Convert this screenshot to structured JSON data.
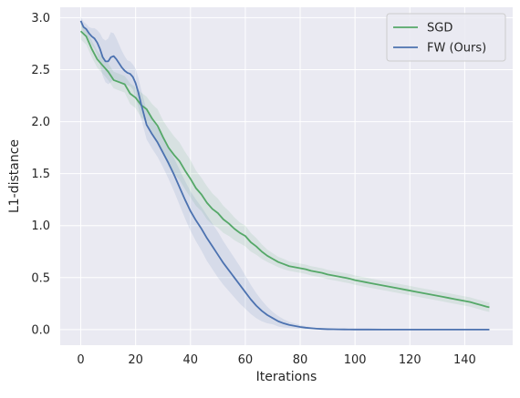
{
  "chart_data": {
    "type": "line",
    "xlabel": "Iterations",
    "ylabel": "L1-distance",
    "xlim": [
      -7.5,
      157.5
    ],
    "ylim": [
      -0.15,
      3.1
    ],
    "xticks": [
      0,
      20,
      40,
      60,
      80,
      100,
      120,
      140
    ],
    "yticks": [
      0.0,
      0.5,
      1.0,
      1.5,
      2.0,
      2.5,
      3.0
    ],
    "grid": true,
    "legend_position": "top-right",
    "background_color": "#eaeaf2",
    "series": [
      {
        "name": "SGD",
        "color": "#55a868",
        "x": [
          0,
          2,
          4,
          6,
          8,
          10,
          12,
          14,
          16,
          18,
          20,
          22,
          24,
          26,
          28,
          30,
          32,
          34,
          36,
          38,
          40,
          42,
          44,
          46,
          48,
          50,
          52,
          54,
          56,
          58,
          60,
          62,
          64,
          66,
          68,
          70,
          72,
          74,
          76,
          78,
          80,
          82,
          84,
          86,
          88,
          90,
          92,
          94,
          96,
          98,
          100,
          102,
          104,
          106,
          108,
          110,
          112,
          114,
          116,
          118,
          120,
          122,
          124,
          126,
          128,
          130,
          132,
          134,
          136,
          138,
          140,
          142,
          144,
          146,
          148,
          149
        ],
        "y": [
          2.87,
          2.82,
          2.7,
          2.6,
          2.54,
          2.48,
          2.4,
          2.38,
          2.36,
          2.27,
          2.23,
          2.16,
          2.12,
          2.03,
          1.96,
          1.85,
          1.75,
          1.68,
          1.62,
          1.53,
          1.45,
          1.36,
          1.3,
          1.22,
          1.16,
          1.12,
          1.06,
          1.02,
          0.97,
          0.93,
          0.9,
          0.84,
          0.8,
          0.75,
          0.71,
          0.68,
          0.65,
          0.63,
          0.61,
          0.6,
          0.59,
          0.58,
          0.565,
          0.555,
          0.545,
          0.53,
          0.52,
          0.51,
          0.5,
          0.49,
          0.475,
          0.465,
          0.455,
          0.445,
          0.435,
          0.425,
          0.415,
          0.405,
          0.395,
          0.385,
          0.375,
          0.365,
          0.355,
          0.345,
          0.335,
          0.325,
          0.315,
          0.305,
          0.295,
          0.285,
          0.275,
          0.265,
          0.25,
          0.235,
          0.22,
          0.215
        ],
        "band": [
          0.08,
          0.08,
          0.08,
          0.08,
          0.08,
          0.08,
          0.08,
          0.08,
          0.08,
          0.1,
          0.1,
          0.12,
          0.12,
          0.14,
          0.16,
          0.16,
          0.18,
          0.18,
          0.18,
          0.18,
          0.18,
          0.17,
          0.16,
          0.16,
          0.15,
          0.14,
          0.13,
          0.12,
          0.11,
          0.1,
          0.1,
          0.09,
          0.08,
          0.07,
          0.06,
          0.055,
          0.05,
          0.05,
          0.045,
          0.045,
          0.045,
          0.045,
          0.045,
          0.045,
          0.045,
          0.045,
          0.045,
          0.045,
          0.045,
          0.045,
          0.045,
          0.045,
          0.045,
          0.045,
          0.045,
          0.045,
          0.045,
          0.045,
          0.045,
          0.045,
          0.045,
          0.045,
          0.045,
          0.045,
          0.045,
          0.045,
          0.045,
          0.045,
          0.045,
          0.045,
          0.045,
          0.045,
          0.045,
          0.045,
          0.045,
          0.045
        ]
      },
      {
        "name": "FW (Ours)",
        "color": "#4c72b0",
        "x": [
          0,
          1,
          2,
          3,
          4,
          5,
          6,
          7,
          8,
          9,
          10,
          11,
          12,
          13,
          14,
          15,
          16,
          17,
          18,
          19,
          20,
          21,
          22,
          23,
          24,
          26,
          28,
          30,
          32,
          34,
          36,
          38,
          40,
          42,
          44,
          46,
          48,
          50,
          52,
          54,
          56,
          58,
          60,
          62,
          64,
          66,
          68,
          70,
          72,
          74,
          76,
          78,
          80,
          82,
          84,
          86,
          88,
          90,
          92,
          94,
          96,
          98,
          100,
          105,
          110,
          115,
          120,
          125,
          130,
          135,
          140,
          145,
          149
        ],
        "y": [
          2.97,
          2.91,
          2.89,
          2.85,
          2.82,
          2.8,
          2.76,
          2.7,
          2.62,
          2.58,
          2.58,
          2.62,
          2.63,
          2.6,
          2.56,
          2.52,
          2.49,
          2.47,
          2.46,
          2.43,
          2.37,
          2.28,
          2.17,
          2.07,
          1.97,
          1.88,
          1.8,
          1.7,
          1.6,
          1.49,
          1.37,
          1.25,
          1.14,
          1.05,
          0.97,
          0.88,
          0.8,
          0.72,
          0.64,
          0.57,
          0.5,
          0.43,
          0.36,
          0.29,
          0.23,
          0.18,
          0.14,
          0.11,
          0.08,
          0.06,
          0.045,
          0.035,
          0.025,
          0.018,
          0.013,
          0.009,
          0.006,
          0.004,
          0.003,
          0.002,
          0.0015,
          0.001,
          0.0008,
          0.0005,
          0.0003,
          0.0002,
          0.0001,
          0.0001,
          0.0,
          0.0,
          0.0,
          0.0,
          0.0
        ],
        "band": [
          0.04,
          0.05,
          0.05,
          0.06,
          0.08,
          0.1,
          0.12,
          0.15,
          0.18,
          0.2,
          0.22,
          0.24,
          0.22,
          0.2,
          0.18,
          0.16,
          0.14,
          0.12,
          0.12,
          0.12,
          0.14,
          0.14,
          0.14,
          0.14,
          0.14,
          0.14,
          0.14,
          0.14,
          0.15,
          0.16,
          0.17,
          0.18,
          0.19,
          0.2,
          0.21,
          0.22,
          0.22,
          0.22,
          0.21,
          0.2,
          0.19,
          0.18,
          0.16,
          0.14,
          0.12,
          0.1,
          0.08,
          0.06,
          0.05,
          0.04,
          0.03,
          0.025,
          0.02,
          0.015,
          0.01,
          0.008,
          0.006,
          0.005,
          0.004,
          0.003,
          0.002,
          0.002,
          0.001,
          0.001,
          0.001,
          0.001,
          0.0,
          0.0,
          0.0,
          0.0,
          0.0,
          0.0,
          0.0
        ]
      }
    ]
  }
}
